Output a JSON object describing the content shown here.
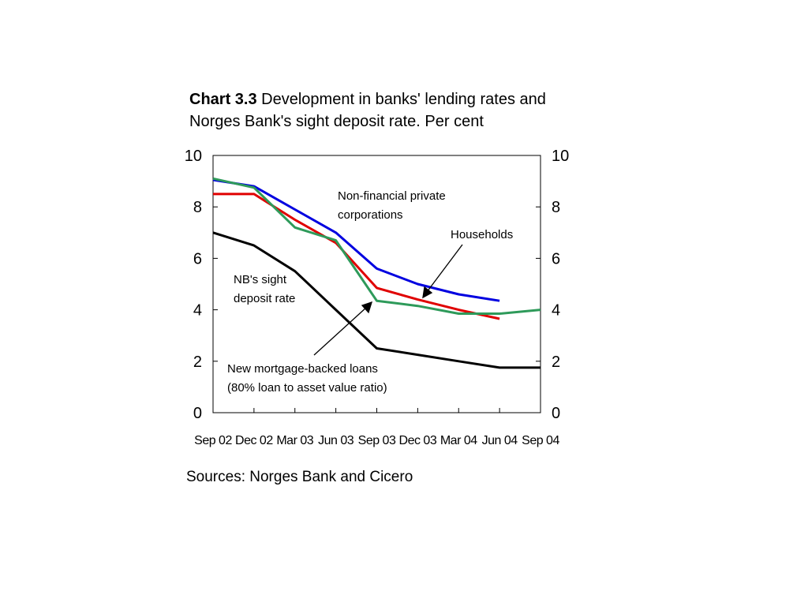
{
  "chart_data": {
    "type": "line",
    "title_bold": "Chart 3.3",
    "title": "Development in banks' lending rates and Norges Bank's sight deposit rate. Per cent",
    "source": "Sources: Norges Bank and Cicero",
    "categories": [
      "Sep 02",
      "Dec 02",
      "Mar 03",
      "Jun 03",
      "Sep 03",
      "Dec 03",
      "Mar 04",
      "Jun 04",
      "Sep 04"
    ],
    "ylim": [
      0,
      10
    ],
    "yticks": [
      "0",
      "2",
      "4",
      "6",
      "8",
      "10"
    ],
    "grid": false,
    "series": [
      {
        "name": "Non-financial private corporations",
        "color": "#0000e0",
        "values": [
          9.05,
          8.8,
          7.9,
          7.0,
          5.6,
          5.0,
          4.6,
          4.35,
          null
        ]
      },
      {
        "name": "Households",
        "color": "#e00000",
        "values": [
          8.5,
          8.5,
          7.5,
          6.6,
          4.85,
          4.4,
          4.0,
          3.65,
          null
        ]
      },
      {
        "name": "New mortgage-backed loans (80% loan to asset value ratio)",
        "color": "#2e9a5a",
        "values": [
          9.1,
          8.75,
          7.2,
          6.7,
          4.35,
          4.15,
          3.85,
          3.85,
          4.0
        ]
      },
      {
        "name": "NB's sight deposit rate",
        "color": "#000000",
        "values": [
          7.0,
          6.5,
          5.5,
          4.0,
          2.5,
          2.25,
          2.0,
          1.75,
          1.75
        ]
      }
    ],
    "annotations": {
      "corporations_line1": "Non-financial private",
      "corporations_line2": "corporations",
      "households": "Households",
      "nb_line1": "NB's sight",
      "nb_line2": "deposit rate",
      "mortgage_line1": "New mortgage-backed loans",
      "mortgage_line2": "(80% loan to asset value ratio)"
    }
  }
}
